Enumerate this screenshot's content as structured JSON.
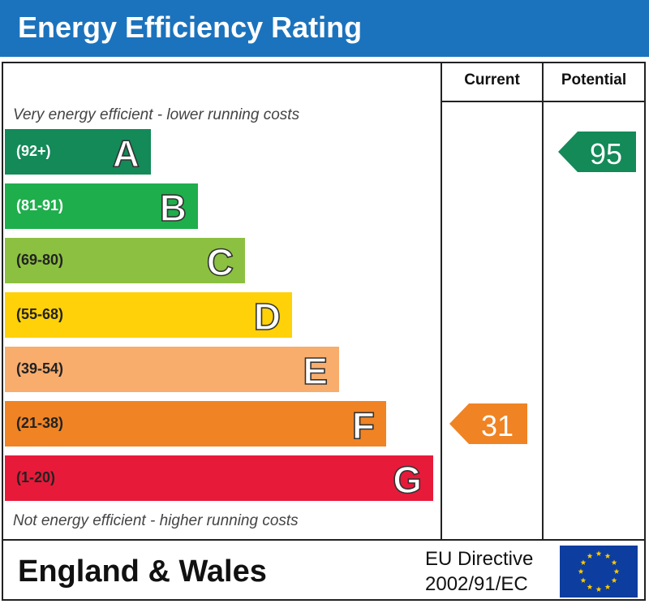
{
  "title": "Energy Efficiency Rating",
  "columns": {
    "current": "Current",
    "potential": "Potential"
  },
  "notes": {
    "top": "Very energy efficient - lower running costs",
    "bottom": "Not energy efficient - higher running costs"
  },
  "chart_data": {
    "type": "bar",
    "title": "Energy Efficiency Rating",
    "categories": [
      "A",
      "B",
      "C",
      "D",
      "E",
      "F",
      "G"
    ],
    "ranges": [
      "(92+)",
      "(81-91)",
      "(69-80)",
      "(55-68)",
      "(39-54)",
      "(21-38)",
      "(1-20)"
    ],
    "colors": [
      "#138a58",
      "#1fae4c",
      "#8cc040",
      "#ffd108",
      "#f8ad6d",
      "#f08323",
      "#e81a3a"
    ],
    "range_text_colors": [
      "#ffffff",
      "#ffffff",
      "#222222",
      "#222222",
      "#222222",
      "#222222",
      "#222222"
    ],
    "current": {
      "value": 31,
      "band": "F",
      "color": "#f08323"
    },
    "potential": {
      "value": 95,
      "band": "A",
      "color": "#138a58"
    }
  },
  "footer": {
    "region": "England & Wales",
    "directive_line1": "EU Directive",
    "directive_line2": "2002/91/EC"
  }
}
